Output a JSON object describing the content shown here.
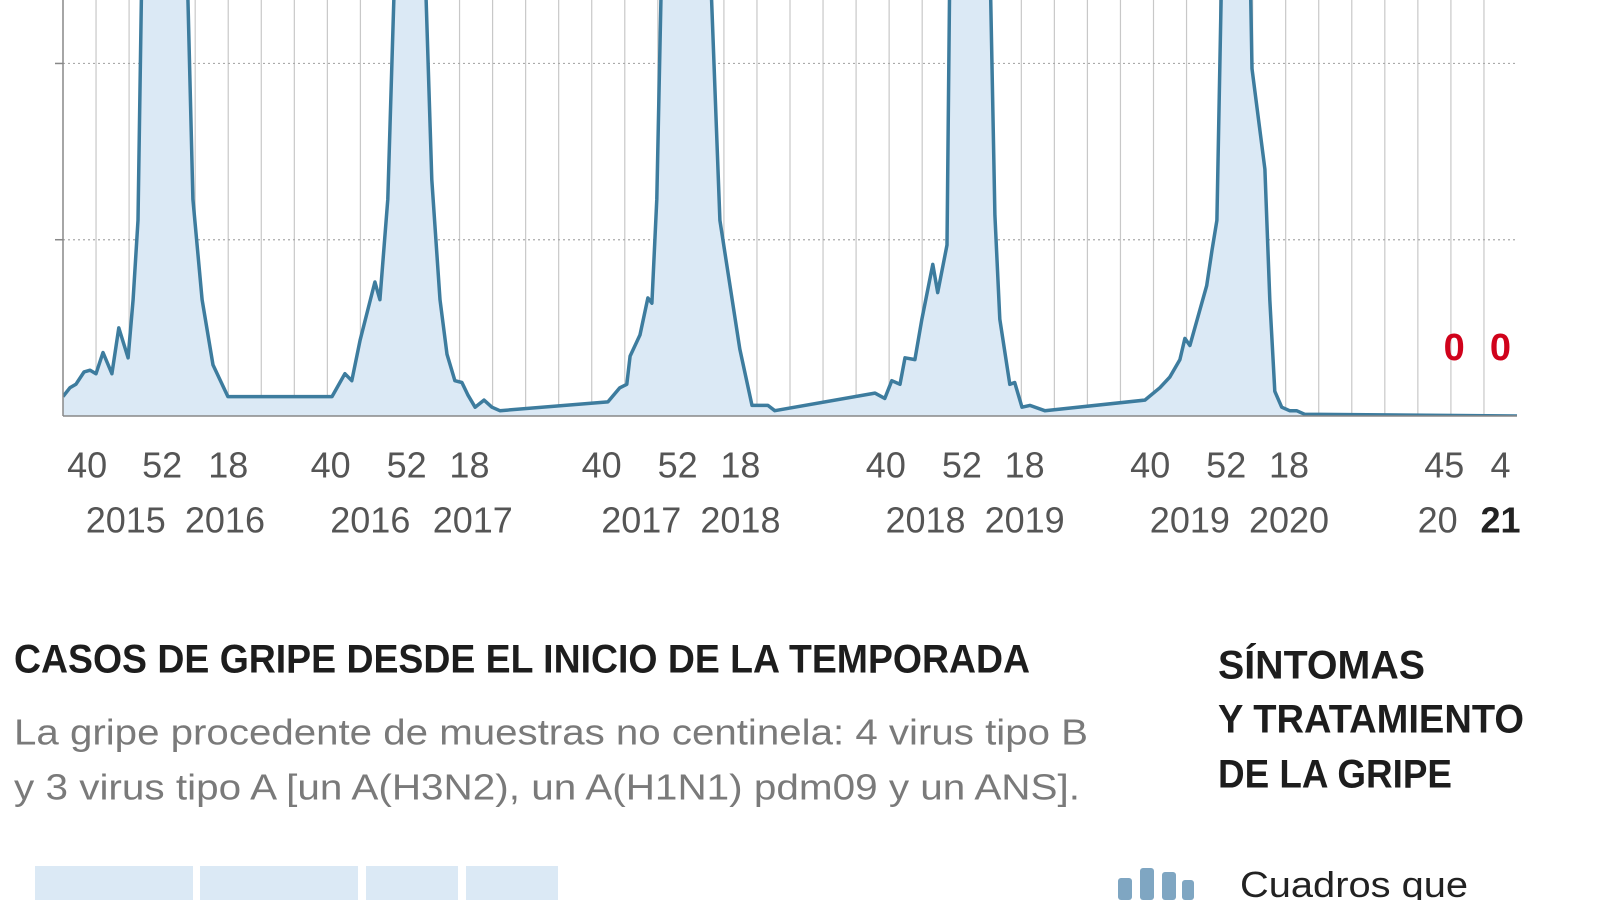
{
  "chart_data": {
    "type": "area",
    "xlim": [
      0,
      44
    ],
    "ylim": [
      0,
      2.36
    ],
    "yticks": [
      1,
      2
    ],
    "grid": true,
    "xgrid": [
      1,
      2,
      3,
      4,
      5,
      6,
      7,
      8,
      9,
      10,
      11,
      12,
      13,
      14,
      15,
      16,
      17,
      18,
      19,
      20,
      21,
      22,
      23,
      24,
      25,
      26,
      27,
      28,
      29,
      30,
      31,
      32,
      33,
      34,
      35,
      36,
      37,
      38,
      39,
      40,
      41,
      42,
      43
    ],
    "xticks": [
      {
        "value": 0.73,
        "label": "40"
      },
      {
        "value": 3.0,
        "label": "52"
      },
      {
        "value": 5.0,
        "label": "18"
      },
      {
        "value": 8.1,
        "label": "40"
      },
      {
        "value": 10.4,
        "label": "52"
      },
      {
        "value": 12.3,
        "label": "18"
      },
      {
        "value": 16.3,
        "label": "40"
      },
      {
        "value": 18.6,
        "label": "52"
      },
      {
        "value": 20.5,
        "label": "18"
      },
      {
        "value": 24.9,
        "label": "40"
      },
      {
        "value": 27.2,
        "label": "52"
      },
      {
        "value": 29.1,
        "label": "18"
      },
      {
        "value": 32.9,
        "label": "40"
      },
      {
        "value": 35.2,
        "label": "52"
      },
      {
        "value": 37.1,
        "label": "18"
      },
      {
        "value": 41.8,
        "label": "45"
      },
      {
        "value": 43.5,
        "label": "4"
      }
    ],
    "year_labels": [
      {
        "value": 1.9,
        "label": "2015"
      },
      {
        "value": 4.9,
        "label": "2016"
      },
      {
        "value": 9.3,
        "label": "2016"
      },
      {
        "value": 12.4,
        "label": "2017"
      },
      {
        "value": 17.5,
        "label": "2017"
      },
      {
        "value": 20.5,
        "label": "2018"
      },
      {
        "value": 26.1,
        "label": "2018"
      },
      {
        "value": 29.1,
        "label": "2019"
      },
      {
        "value": 34.1,
        "label": "2019"
      },
      {
        "value": 37.1,
        "label": "2020"
      },
      {
        "value": 41.6,
        "label": "20"
      },
      {
        "value": 43.5,
        "label": "21",
        "bold": true
      }
    ],
    "series": [
      {
        "color": "#3d7c9e",
        "fill": "#dbe9f5",
        "x": [
          0,
          0.21,
          0.39,
          0.64,
          0.82,
          1.0,
          1.21,
          1.48,
          1.69,
          1.97,
          2.12,
          2.27,
          2.39,
          3.75,
          3.93,
          4.21,
          4.54,
          4.99,
          8.14,
          8.53,
          8.74,
          8.99,
          9.44,
          9.59,
          9.83,
          10.05,
          10.95,
          11.16,
          11.41,
          11.62,
          11.86,
          12.07,
          12.25,
          12.47,
          12.74,
          12.98,
          13.22,
          16.49,
          16.85,
          17.06,
          17.16,
          17.46,
          17.7,
          17.82,
          17.97,
          18.12,
          19.58,
          19.88,
          20.48,
          20.85,
          21.33,
          21.54,
          24.57,
          24.87,
          25.08,
          25.33,
          25.48,
          25.78,
          25.99,
          26.32,
          26.47,
          26.75,
          26.84,
          28.05,
          28.2,
          28.35,
          28.65,
          28.8,
          29.02,
          29.26,
          29.71,
          32.74,
          33.19,
          33.49,
          33.8,
          33.95,
          34.1,
          34.4,
          34.61,
          34.77,
          34.92,
          35.07,
          35.92,
          35.98,
          36.37,
          36.52,
          36.67,
          36.88,
          37.12,
          37.33,
          37.57,
          44
        ],
        "values": [
          0.11,
          0.16,
          0.18,
          0.25,
          0.26,
          0.24,
          0.36,
          0.24,
          0.5,
          0.33,
          0.66,
          1.11,
          2.6,
          2.6,
          1.23,
          0.66,
          0.29,
          0.11,
          0.11,
          0.24,
          0.2,
          0.43,
          0.76,
          0.66,
          1.23,
          2.6,
          2.6,
          1.34,
          0.66,
          0.35,
          0.2,
          0.19,
          0.12,
          0.05,
          0.09,
          0.05,
          0.03,
          0.08,
          0.16,
          0.18,
          0.34,
          0.46,
          0.67,
          0.64,
          1.23,
          2.6,
          2.6,
          1.11,
          0.38,
          0.06,
          0.06,
          0.03,
          0.13,
          0.1,
          0.2,
          0.18,
          0.33,
          0.32,
          0.55,
          0.86,
          0.7,
          0.97,
          2.6,
          2.6,
          1.14,
          0.55,
          0.18,
          0.19,
          0.05,
          0.06,
          0.03,
          0.09,
          0.16,
          0.22,
          0.32,
          0.44,
          0.4,
          0.6,
          0.74,
          0.94,
          1.11,
          2.6,
          2.6,
          1.97,
          1.4,
          0.66,
          0.14,
          0.05,
          0.03,
          0.03,
          0.01,
          0
        ]
      }
    ],
    "labeled_points": {
      "x": [
        42.1,
        43.5
      ],
      "values": [
        0,
        0
      ],
      "color": "#d0021b"
    }
  },
  "section": {
    "title": "CASOS DE GRIPE DESDE EL INICIO DE LA TEMPORADA",
    "subtitle_lines": [
      "La gripe procedente de muestras no centinela: 4 virus tipo B",
      "y 3 virus tipo A [un A(H3N2), un A(H1N1) pdm09 y un ANS]."
    ]
  },
  "sidebar": {
    "title_lines": [
      "SÍNTOMAS",
      "Y TRATAMIENTO",
      "DE LA GRIPE"
    ],
    "item": "Cuadros que"
  }
}
